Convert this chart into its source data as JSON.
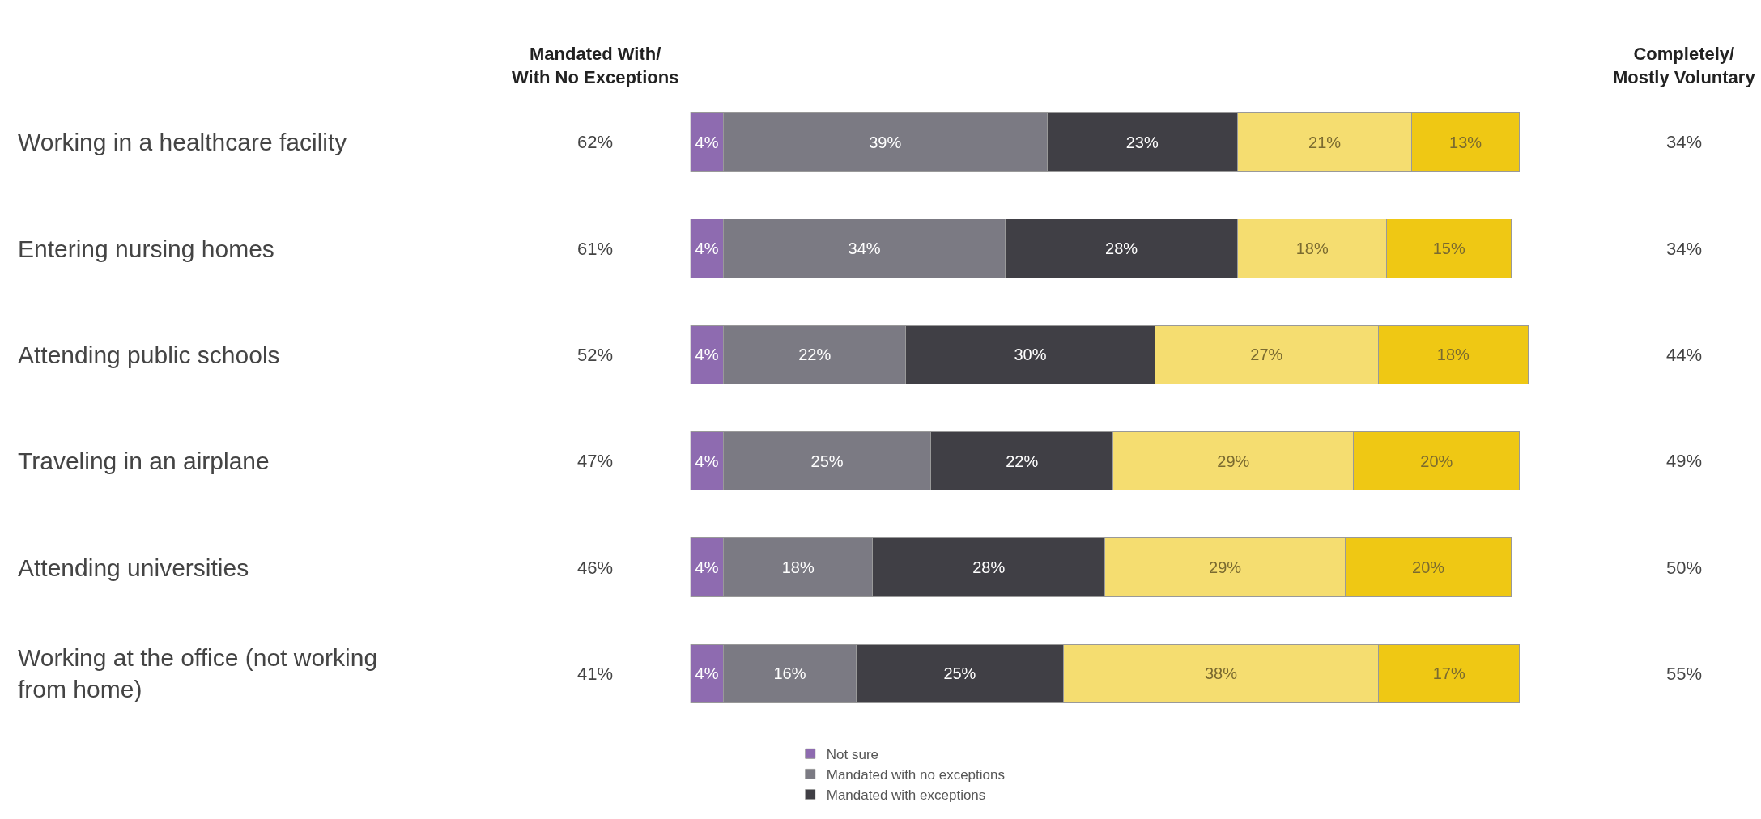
{
  "chart_data": {
    "type": "bar",
    "orientation": "horizontal",
    "stacked": true,
    "data_labels": true,
    "legend": "bottom",
    "categories": [
      "Working in a healthcare facility",
      "Entering nursing homes",
      "Attending public schools",
      "Traveling in an airplane",
      "Attending universities",
      "Working at the office (not working from home)"
    ],
    "series": [
      {
        "name": "Not sure",
        "color": "#8e6bb0",
        "values": [
          4,
          4,
          4,
          4,
          4,
          4
        ],
        "value_labels": [
          "4%",
          "4%",
          "4%",
          "4%",
          "4%",
          "4%"
        ]
      },
      {
        "name": "Mandated with no exceptions",
        "color": "#7b7a83",
        "values": [
          39,
          34,
          22,
          25,
          18,
          16
        ],
        "value_labels": [
          "39%",
          "34%",
          "22%",
          "25%",
          "18%",
          "16%"
        ]
      },
      {
        "name": "Mandated with exceptions",
        "color": "#403f45",
        "values": [
          23,
          28,
          30,
          22,
          28,
          25
        ],
        "value_labels": [
          "23%",
          "28%",
          "30%",
          "22%",
          "28%",
          "25%"
        ]
      },
      {
        "color": "#f5dd70",
        "values": [
          21,
          18,
          27,
          29,
          29,
          38
        ],
        "value_labels": [
          "21%",
          "18%",
          "27%",
          "29%",
          "29%",
          "38%"
        ]
      },
      {
        "color": "#efc814",
        "values": [
          13,
          15,
          18,
          20,
          20,
          17
        ],
        "value_labels": [
          "13%",
          "15%",
          "18%",
          "20%",
          "20%",
          "17%"
        ]
      }
    ],
    "annotations": [
      "Mandated With/\nWith No Exceptions",
      "Completely/\nMostly Voluntary",
      "62%",
      "34%",
      "61%",
      "34%",
      "52%",
      "44%",
      "47%",
      "49%",
      "46%",
      "50%",
      "41%",
      "55%"
    ]
  }
}
